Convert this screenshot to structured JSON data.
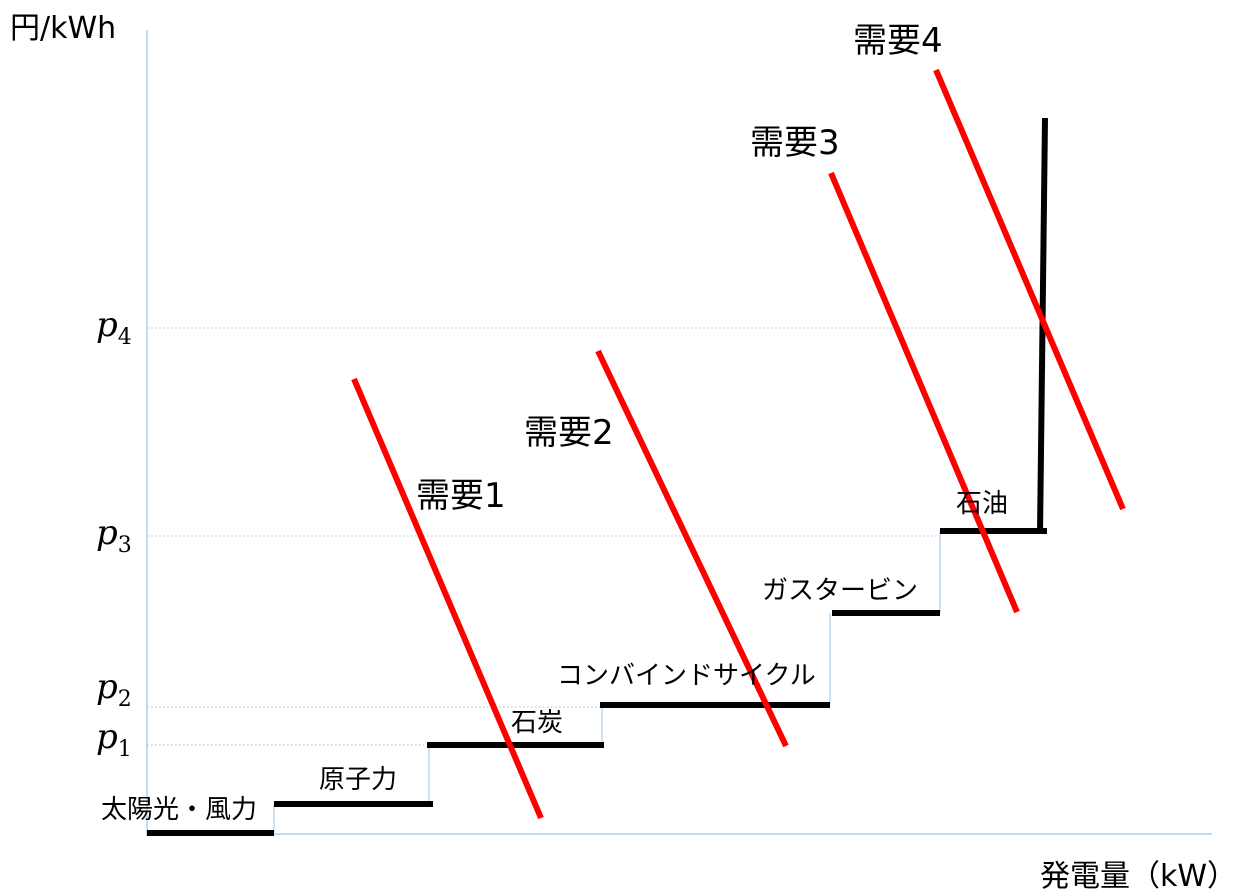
{
  "diagram": {
    "y_axis_label": "円/kWh",
    "x_axis_label": "発電量（kW）",
    "price_levels": [
      {
        "symbol": "p",
        "subscript": "4"
      },
      {
        "symbol": "p",
        "subscript": "3"
      },
      {
        "symbol": "p",
        "subscript": "2"
      },
      {
        "symbol": "p",
        "subscript": "1"
      }
    ],
    "supply_steps": [
      {
        "label": "太陽光・風力"
      },
      {
        "label": "原子力"
      },
      {
        "label": "石炭"
      },
      {
        "label": "コンバインドサイクル"
      },
      {
        "label": "ガスタービン"
      },
      {
        "label": "石油"
      }
    ],
    "demand_curves": [
      {
        "label": "需要1"
      },
      {
        "label": "需要2"
      },
      {
        "label": "需要3"
      },
      {
        "label": "需要4"
      }
    ],
    "colors": {
      "supply": "#000000",
      "demand": "#ff0000",
      "axis": "#9ec3e6"
    }
  }
}
